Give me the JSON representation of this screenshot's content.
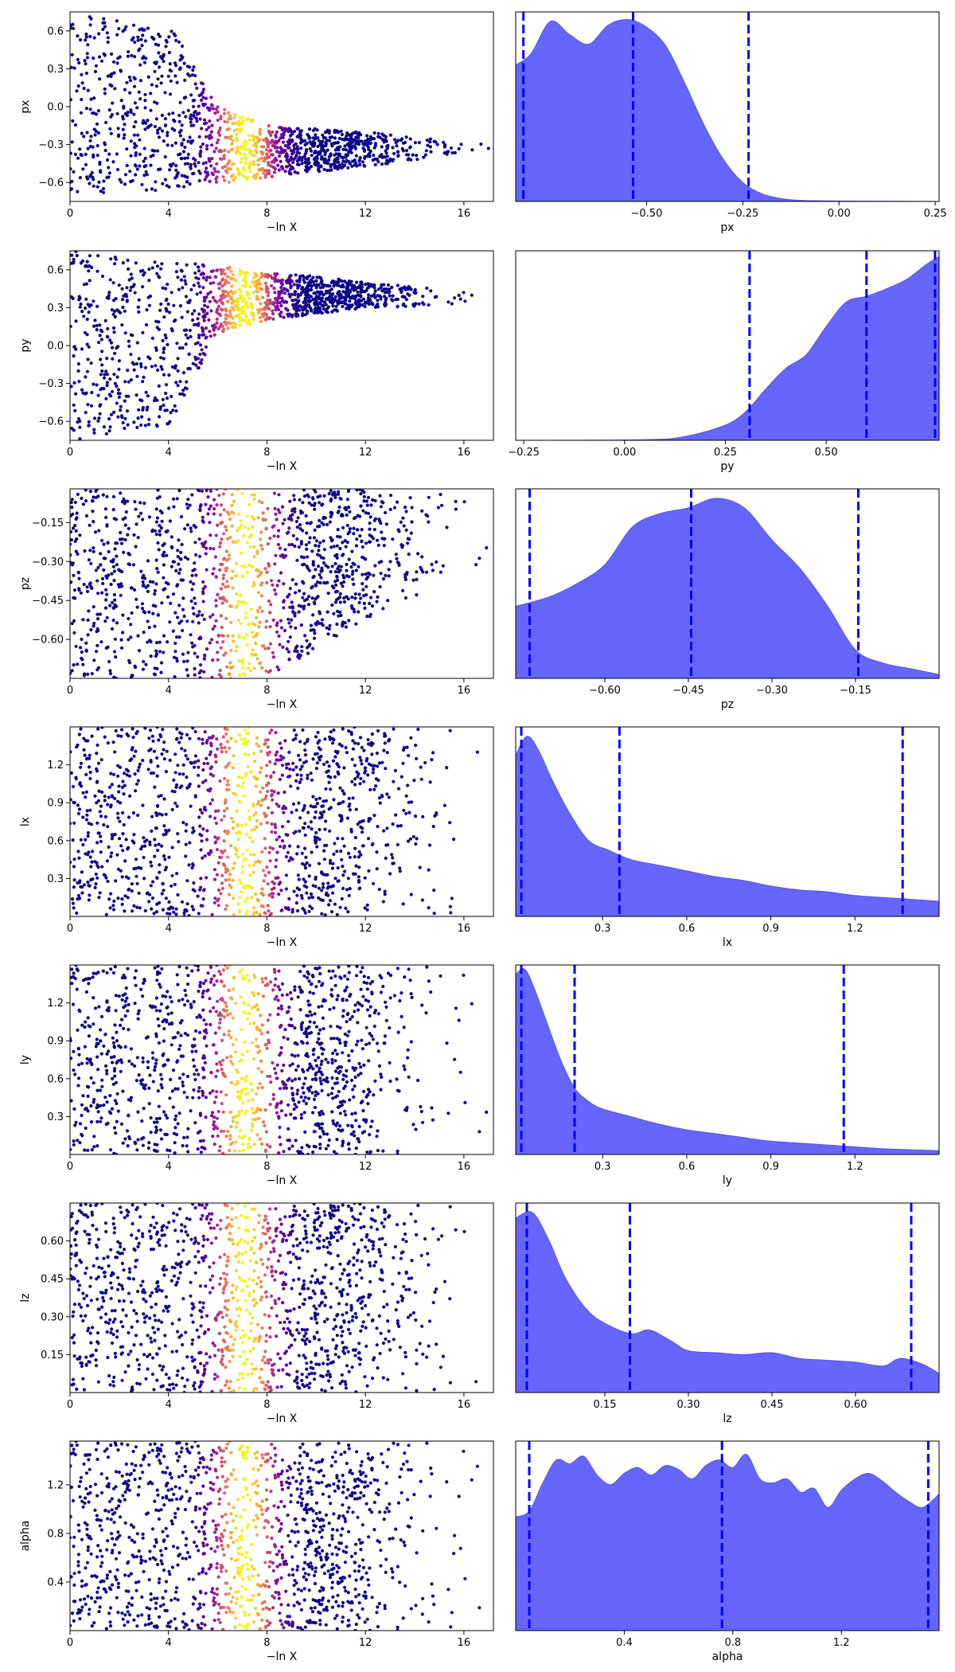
{
  "colors": {
    "kde_fill": "#6666ff",
    "kde_edge": "#4f4ff5",
    "quantile_line": "#0000ff",
    "scatter_low": "#0d0887",
    "scatter_mid": "#b12a90",
    "scatter_high": "#f0f921"
  },
  "chart_data": [
    {
      "type": "scatter",
      "parameter": "px",
      "xlabel": "−ln X",
      "ylabel": "px",
      "xlim": [
        0,
        17.2
      ],
      "ylim": [
        -0.75,
        0.75
      ],
      "x_ticks": [
        "0",
        "4",
        "8",
        "12",
        "16"
      ],
      "y_ticks": [
        "0.6",
        "0.3",
        "0.0",
        "−0.3",
        "−0.6"
      ],
      "y_tick_values": [
        0.6,
        0.3,
        0.0,
        -0.3,
        -0.6
      ],
      "envelope": {
        "lo": [
          [
            0,
            -0.75
          ],
          [
            17.2,
            -0.35
          ]
        ],
        "hi": [
          [
            0,
            0.75
          ],
          [
            4.2,
            0.6
          ],
          [
            6,
            0.0
          ],
          [
            8,
            -0.15
          ],
          [
            12,
            -0.2
          ],
          [
            17.2,
            -0.3
          ]
        ]
      }
    },
    {
      "type": "area",
      "parameter": "px",
      "xlabel": "px",
      "xlim": [
        -0.84,
        0.26
      ],
      "x_ticks": [
        "−0.50",
        "−0.25",
        "0.00",
        "0.25"
      ],
      "x_tick_values": [
        -0.5,
        -0.25,
        0.0,
        0.25
      ],
      "quantiles": [
        -0.82,
        -0.535,
        -0.235
      ],
      "density": [
        [
          -0.84,
          0.72
        ],
        [
          -0.8,
          0.78
        ],
        [
          -0.75,
          0.95
        ],
        [
          -0.7,
          0.88
        ],
        [
          -0.65,
          0.83
        ],
        [
          -0.6,
          0.93
        ],
        [
          -0.55,
          0.96
        ],
        [
          -0.5,
          0.92
        ],
        [
          -0.45,
          0.82
        ],
        [
          -0.4,
          0.62
        ],
        [
          -0.35,
          0.4
        ],
        [
          -0.3,
          0.22
        ],
        [
          -0.25,
          0.1
        ],
        [
          -0.2,
          0.04
        ],
        [
          -0.15,
          0.015
        ],
        [
          -0.1,
          0.006
        ],
        [
          0,
          0.002
        ],
        [
          0.26,
          0
        ]
      ]
    },
    {
      "type": "scatter",
      "parameter": "py",
      "xlabel": "−ln X",
      "ylabel": "py",
      "xlim": [
        0,
        17.2
      ],
      "ylim": [
        -0.75,
        0.75
      ],
      "x_ticks": [
        "0",
        "4",
        "8",
        "12",
        "16"
      ],
      "y_ticks": [
        "0.6",
        "0.3",
        "0.0",
        "−0.3",
        "−0.6"
      ],
      "y_tick_values": [
        0.6,
        0.3,
        0.0,
        -0.3,
        -0.6
      ],
      "envelope": {
        "lo": [
          [
            0,
            -0.75
          ],
          [
            4,
            -0.65
          ],
          [
            6,
            0.1
          ],
          [
            8,
            0.2
          ],
          [
            12,
            0.3
          ],
          [
            17.2,
            0.33
          ]
        ],
        "hi": [
          [
            0,
            0.75
          ],
          [
            17.2,
            0.4
          ]
        ]
      }
    },
    {
      "type": "area",
      "parameter": "py",
      "xlabel": "py",
      "xlim": [
        -0.27,
        0.78
      ],
      "x_ticks": [
        "−0.25",
        "0.00",
        "0.25",
        "0.50"
      ],
      "x_tick_values": [
        -0.25,
        0.0,
        0.25,
        0.5
      ],
      "quantiles": [
        0.31,
        0.6,
        0.77
      ],
      "density": [
        [
          -0.27,
          0
        ],
        [
          0.05,
          0.003
        ],
        [
          0.15,
          0.02
        ],
        [
          0.25,
          0.08
        ],
        [
          0.3,
          0.15
        ],
        [
          0.35,
          0.27
        ],
        [
          0.4,
          0.38
        ],
        [
          0.45,
          0.45
        ],
        [
          0.5,
          0.6
        ],
        [
          0.55,
          0.73
        ],
        [
          0.6,
          0.76
        ],
        [
          0.65,
          0.8
        ],
        [
          0.7,
          0.85
        ],
        [
          0.75,
          0.93
        ],
        [
          0.78,
          0.97
        ]
      ]
    },
    {
      "type": "scatter",
      "parameter": "pz",
      "xlabel": "−ln X",
      "ylabel": "pz",
      "xlim": [
        0,
        17.2
      ],
      "ylim": [
        -0.75,
        -0.02
      ],
      "x_ticks": [
        "0",
        "4",
        "8",
        "12",
        "16"
      ],
      "y_ticks": [
        "−0.15",
        "−0.30",
        "−0.45",
        "−0.60"
      ],
      "y_tick_values": [
        -0.15,
        -0.3,
        -0.45,
        -0.6
      ],
      "envelope": {
        "lo": [
          [
            0,
            -0.75
          ],
          [
            8,
            -0.75
          ],
          [
            12,
            -0.52
          ],
          [
            17.2,
            -0.3
          ]
        ],
        "hi": [
          [
            0,
            -0.02
          ],
          [
            17.2,
            -0.02
          ]
        ]
      }
    },
    {
      "type": "area",
      "parameter": "pz",
      "xlabel": "pz",
      "xlim": [
        -0.76,
        0.0
      ],
      "x_ticks": [
        "−0.60",
        "−0.45",
        "−0.30",
        "−0.15"
      ],
      "x_tick_values": [
        -0.6,
        -0.45,
        -0.3,
        -0.15
      ],
      "quantiles": [
        -0.735,
        -0.445,
        -0.145
      ],
      "density": [
        [
          -0.76,
          0.38
        ],
        [
          -0.7,
          0.43
        ],
        [
          -0.65,
          0.5
        ],
        [
          -0.6,
          0.6
        ],
        [
          -0.55,
          0.8
        ],
        [
          -0.5,
          0.87
        ],
        [
          -0.45,
          0.9
        ],
        [
          -0.4,
          0.95
        ],
        [
          -0.35,
          0.9
        ],
        [
          -0.3,
          0.73
        ],
        [
          -0.25,
          0.58
        ],
        [
          -0.2,
          0.38
        ],
        [
          -0.15,
          0.15
        ],
        [
          -0.1,
          0.08
        ],
        [
          -0.05,
          0.05
        ],
        [
          0.0,
          0.02
        ]
      ]
    },
    {
      "type": "scatter",
      "parameter": "lx",
      "xlabel": "−ln X",
      "ylabel": "lx",
      "xlim": [
        0,
        17.2
      ],
      "ylim": [
        0.0,
        1.5
      ],
      "x_ticks": [
        "0",
        "4",
        "8",
        "12",
        "16"
      ],
      "y_ticks": [
        "1.2",
        "0.9",
        "0.6",
        "0.3"
      ],
      "y_tick_values": [
        1.2,
        0.9,
        0.6,
        0.3
      ],
      "envelope": {
        "lo": [
          [
            0,
            0.0
          ],
          [
            17.2,
            0.0
          ]
        ],
        "hi": [
          [
            0,
            1.5
          ],
          [
            17.2,
            1.5
          ]
        ]
      }
    },
    {
      "type": "area",
      "parameter": "lx",
      "xlabel": "lx",
      "xlim": [
        -0.01,
        1.5
      ],
      "x_ticks": [
        "0.3",
        "0.6",
        "0.9",
        "1.2"
      ],
      "x_tick_values": [
        0.3,
        0.6,
        0.9,
        1.2
      ],
      "quantiles": [
        0.01,
        0.36,
        1.37
      ],
      "density": [
        [
          -0.01,
          0.85
        ],
        [
          0.03,
          0.95
        ],
        [
          0.07,
          0.88
        ],
        [
          0.12,
          0.72
        ],
        [
          0.18,
          0.55
        ],
        [
          0.25,
          0.4
        ],
        [
          0.32,
          0.35
        ],
        [
          0.4,
          0.3
        ],
        [
          0.5,
          0.27
        ],
        [
          0.6,
          0.24
        ],
        [
          0.7,
          0.21
        ],
        [
          0.8,
          0.19
        ],
        [
          0.9,
          0.16
        ],
        [
          1.0,
          0.14
        ],
        [
          1.1,
          0.13
        ],
        [
          1.2,
          0.11
        ],
        [
          1.3,
          0.1
        ],
        [
          1.4,
          0.09
        ],
        [
          1.5,
          0.08
        ]
      ]
    },
    {
      "type": "scatter",
      "parameter": "ly",
      "xlabel": "−ln X",
      "ylabel": "ly",
      "xlim": [
        0,
        17.2
      ],
      "ylim": [
        0.0,
        1.5
      ],
      "x_ticks": [
        "0",
        "4",
        "8",
        "12",
        "16"
      ],
      "y_ticks": [
        "1.2",
        "0.9",
        "0.6",
        "0.3"
      ],
      "y_tick_values": [
        1.2,
        0.9,
        0.6,
        0.3
      ],
      "envelope": {
        "lo": [
          [
            0,
            0.0
          ],
          [
            17.2,
            0.0
          ]
        ],
        "hi": [
          [
            0,
            1.5
          ],
          [
            17.2,
            1.5
          ]
        ]
      }
    },
    {
      "type": "area",
      "parameter": "ly",
      "xlabel": "ly",
      "xlim": [
        -0.01,
        1.5
      ],
      "x_ticks": [
        "0.3",
        "0.6",
        "0.9",
        "1.2"
      ],
      "x_tick_values": [
        0.3,
        0.6,
        0.9,
        1.2
      ],
      "quantiles": [
        0.01,
        0.2,
        1.16
      ],
      "density": [
        [
          -0.01,
          0.95
        ],
        [
          0.02,
          0.98
        ],
        [
          0.05,
          0.9
        ],
        [
          0.1,
          0.7
        ],
        [
          0.15,
          0.5
        ],
        [
          0.2,
          0.35
        ],
        [
          0.25,
          0.28
        ],
        [
          0.3,
          0.24
        ],
        [
          0.4,
          0.2
        ],
        [
          0.5,
          0.16
        ],
        [
          0.6,
          0.13
        ],
        [
          0.7,
          0.11
        ],
        [
          0.8,
          0.09
        ],
        [
          0.9,
          0.07
        ],
        [
          1.0,
          0.06
        ],
        [
          1.1,
          0.05
        ],
        [
          1.2,
          0.04
        ],
        [
          1.3,
          0.03
        ],
        [
          1.5,
          0.02
        ]
      ]
    },
    {
      "type": "scatter",
      "parameter": "lz",
      "xlabel": "−ln X",
      "ylabel": "lz",
      "xlim": [
        0,
        17.2
      ],
      "ylim": [
        0.0,
        0.75
      ],
      "x_ticks": [
        "0",
        "4",
        "8",
        "12",
        "16"
      ],
      "y_ticks": [
        "0.60",
        "0.45",
        "0.30",
        "0.15"
      ],
      "y_tick_values": [
        0.6,
        0.45,
        0.3,
        0.15
      ],
      "envelope": {
        "lo": [
          [
            0,
            0.0
          ],
          [
            17.2,
            0.0
          ]
        ],
        "hi": [
          [
            0,
            0.75
          ],
          [
            17.2,
            0.75
          ]
        ]
      }
    },
    {
      "type": "area",
      "parameter": "lz",
      "xlabel": "lz",
      "xlim": [
        -0.01,
        0.75
      ],
      "x_ticks": [
        "0.15",
        "0.30",
        "0.45",
        "0.60"
      ],
      "x_tick_values": [
        0.15,
        0.3,
        0.45,
        0.6
      ],
      "quantiles": [
        0.01,
        0.195,
        0.7
      ],
      "density": [
        [
          -0.01,
          0.92
        ],
        [
          0.02,
          0.95
        ],
        [
          0.05,
          0.8
        ],
        [
          0.08,
          0.6
        ],
        [
          0.12,
          0.43
        ],
        [
          0.16,
          0.35
        ],
        [
          0.2,
          0.31
        ],
        [
          0.23,
          0.33
        ],
        [
          0.27,
          0.27
        ],
        [
          0.3,
          0.22
        ],
        [
          0.35,
          0.21
        ],
        [
          0.4,
          0.2
        ],
        [
          0.45,
          0.21
        ],
        [
          0.5,
          0.18
        ],
        [
          0.55,
          0.17
        ],
        [
          0.6,
          0.16
        ],
        [
          0.65,
          0.14
        ],
        [
          0.68,
          0.18
        ],
        [
          0.72,
          0.15
        ],
        [
          0.75,
          0.1
        ]
      ]
    },
    {
      "type": "scatter",
      "parameter": "alpha",
      "xlabel": "−ln X",
      "ylabel": "alpha",
      "xlim": [
        0,
        17.2
      ],
      "ylim": [
        0.0,
        1.56
      ],
      "x_ticks": [
        "0",
        "4",
        "8",
        "12",
        "16"
      ],
      "y_ticks": [
        "1.2",
        "0.8",
        "0.4"
      ],
      "y_tick_values": [
        1.2,
        0.8,
        0.4
      ],
      "envelope": {
        "lo": [
          [
            0,
            0.0
          ],
          [
            17.2,
            0.0
          ]
        ],
        "hi": [
          [
            0,
            1.56
          ],
          [
            17.2,
            1.56
          ]
        ]
      }
    },
    {
      "type": "area",
      "parameter": "alpha",
      "xlabel": "alpha",
      "xlim": [
        0.0,
        1.56
      ],
      "x_ticks": [
        "0.4",
        "0.8",
        "1.2"
      ],
      "x_tick_values": [
        0.4,
        0.8,
        1.2
      ],
      "quantiles": [
        0.05,
        0.76,
        1.52
      ],
      "density": [
        [
          0.0,
          0.6
        ],
        [
          0.05,
          0.63
        ],
        [
          0.1,
          0.78
        ],
        [
          0.15,
          0.9
        ],
        [
          0.2,
          0.88
        ],
        [
          0.25,
          0.92
        ],
        [
          0.3,
          0.82
        ],
        [
          0.35,
          0.77
        ],
        [
          0.4,
          0.83
        ],
        [
          0.45,
          0.86
        ],
        [
          0.5,
          0.82
        ],
        [
          0.55,
          0.87
        ],
        [
          0.6,
          0.85
        ],
        [
          0.65,
          0.8
        ],
        [
          0.7,
          0.87
        ],
        [
          0.75,
          0.9
        ],
        [
          0.8,
          0.86
        ],
        [
          0.85,
          0.93
        ],
        [
          0.9,
          0.8
        ],
        [
          0.95,
          0.78
        ],
        [
          1.0,
          0.8
        ],
        [
          1.05,
          0.73
        ],
        [
          1.1,
          0.75
        ],
        [
          1.15,
          0.65
        ],
        [
          1.2,
          0.74
        ],
        [
          1.25,
          0.8
        ],
        [
          1.3,
          0.83
        ],
        [
          1.35,
          0.79
        ],
        [
          1.4,
          0.73
        ],
        [
          1.45,
          0.68
        ],
        [
          1.5,
          0.65
        ],
        [
          1.56,
          0.72
        ]
      ]
    }
  ]
}
